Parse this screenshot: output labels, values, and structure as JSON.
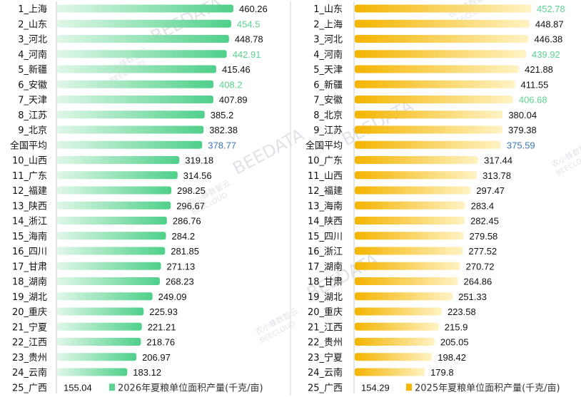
{
  "chart_data": [
    {
      "type": "bar",
      "orientation": "horizontal",
      "series": [
        {
          "name": "2026年夏粮单位面积产量(千克/亩)",
          "color": "#5cd391"
        }
      ],
      "categories": [
        "1_上海",
        "2_山东",
        "3_河北",
        "4_河南",
        "5_新疆",
        "6_安徽",
        "7_天津",
        "8_江苏",
        "9_北京",
        "全国平均",
        "10_山西",
        "11_广东",
        "12_福建",
        "13_陕西",
        "14_浙江",
        "15_海南",
        "16_四川",
        "17_甘肃",
        "18_湖南",
        "19_湖北",
        "20_重庆",
        "21_宁夏",
        "22_江西",
        "23_贵州",
        "24_云南",
        "25_广西"
      ],
      "values": [
        460.26,
        454.5,
        448.78,
        442.91,
        415.46,
        408.2,
        407.89,
        385.2,
        382.38,
        378.77,
        319.18,
        314.56,
        298.25,
        296.67,
        286.76,
        284.2,
        281.85,
        271.13,
        268.23,
        249.09,
        225.93,
        221.21,
        218.76,
        206.97,
        183.12,
        155.04
      ],
      "value_labels": [
        "460.26",
        "454.5",
        "448.78",
        "442.91",
        "415.46",
        "408.2",
        "407.89",
        "385.2",
        "382.38",
        "378.77",
        "319.18",
        "314.56",
        "298.25",
        "296.67",
        "286.76",
        "284.2",
        "281.85",
        "271.13",
        "268.23",
        "249.09",
        "225.93",
        "221.21",
        "218.76",
        "206.97",
        "183.12",
        "155.04"
      ],
      "highlight_green_labels": [
        1,
        3,
        5
      ],
      "highlight_blue_labels": [
        9
      ]
    },
    {
      "type": "bar",
      "orientation": "horizontal",
      "series": [
        {
          "name": "2025年夏粮单位面积产量(千克/亩)",
          "color": "#f7b500"
        }
      ],
      "categories": [
        "1_山东",
        "2_上海",
        "3_河北",
        "4_河南",
        "5_天津",
        "6_新疆",
        "7_安徽",
        "8_北京",
        "9_江苏",
        "全国平均",
        "10_广东",
        "11_山西",
        "12_福建",
        "13_海南",
        "14_陕西",
        "15_四川",
        "16_浙江",
        "17_湖南",
        "18_甘肃",
        "19_湖北",
        "20_重庆",
        "21_江西",
        "22_贵州",
        "23_宁夏",
        "24_云南",
        "25_广西"
      ],
      "values": [
        452.78,
        448.87,
        446.38,
        439.92,
        421.88,
        411.55,
        406.68,
        380.04,
        379.38,
        375.59,
        317.44,
        313.78,
        297.47,
        283.4,
        282.45,
        279.58,
        277.52,
        270.72,
        264.86,
        251.33,
        223.58,
        215.9,
        205.05,
        198.42,
        179.8,
        154.29
      ],
      "value_labels": [
        "452.78",
        "448.87",
        "446.38",
        "439.92",
        "421.88",
        "411.55",
        "406.68",
        "380.04",
        "379.38",
        "375.59",
        "317.44",
        "313.78",
        "297.47",
        "283.4",
        "282.45",
        "279.58",
        "277.52",
        "270.72",
        "264.86",
        "251.33",
        "223.58",
        "215.9",
        "205.05",
        "198.42",
        "179.8",
        "154.29"
      ],
      "highlight_green_labels": [
        0,
        3,
        6
      ],
      "highlight_blue_labels": [
        9
      ]
    }
  ],
  "watermark": {
    "brand_cn": "农小蜂数智云",
    "brand_en": "BEECLOUD",
    "brand_data": "BEEDATA"
  }
}
